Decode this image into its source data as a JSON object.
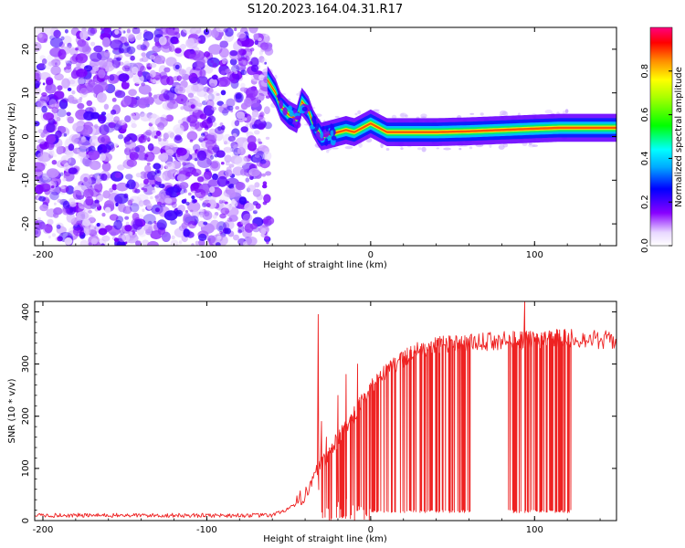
{
  "figure": {
    "title": "S120.2023.164.04.31.R17"
  },
  "colors": {
    "line": "#ee2222",
    "frame": "#000000"
  },
  "chart_data": [
    {
      "type": "heatmap",
      "xlabel": "Height of straight line (km)",
      "ylabel": "Frequency (Hz)",
      "xlim": [
        -205,
        150
      ],
      "ylim": [
        -25,
        25
      ],
      "xticks": [
        -200,
        -100,
        0,
        100
      ],
      "xtick_labels": [
        "-200",
        "-100",
        "0",
        "100"
      ],
      "yticks": [
        -20,
        -10,
        0,
        10,
        20
      ],
      "ytick_labels": [
        "-20",
        "-10",
        "0",
        "10",
        "20"
      ],
      "noise_region_x": [
        -205,
        -62
      ],
      "ridge": {
        "x": [
          -63,
          -58,
          -55,
          -50,
          -45,
          -42,
          -38,
          -35,
          -32,
          -30,
          -25,
          -20,
          -15,
          -10,
          -5,
          0,
          5,
          10,
          20,
          40,
          60,
          80,
          100,
          115,
          150
        ],
        "y": [
          13,
          10,
          7,
          5,
          4,
          8,
          6,
          3,
          1,
          0,
          0.5,
          1,
          1.5,
          1,
          2,
          3,
          2,
          1,
          1,
          1,
          1.2,
          1.5,
          1.8,
          2,
          2
        ]
      },
      "colorbar": {
        "label": "Normalized spectral amplitude",
        "range": [
          0,
          1
        ],
        "ticks": [
          0,
          0.2,
          0.4,
          0.6,
          0.8
        ],
        "tick_labels": [
          "0.0",
          "0.2",
          "0.4",
          "0.6",
          "0.8"
        ]
      },
      "grid": false
    },
    {
      "type": "line",
      "xlabel": "Height of straight line (km)",
      "ylabel": "SNR (10 * v/v)",
      "xlim": [
        -205,
        150
      ],
      "ylim": [
        0,
        420
      ],
      "xticks": [
        -200,
        -100,
        0,
        100
      ],
      "xtick_labels": [
        "-200",
        "-100",
        "0",
        "100"
      ],
      "yticks": [
        0,
        100,
        200,
        300,
        400
      ],
      "ytick_labels": [
        "0",
        "100",
        "200",
        "300",
        "400"
      ],
      "series": [
        {
          "baseline": {
            "x": [
              -205,
              -60,
              -45,
              -35,
              -25,
              -15,
              -5,
              5,
              15,
              25,
              40,
              60,
              80,
              100,
              120,
              150
            ],
            "y": [
              10,
              10,
              30,
              80,
              130,
              180,
              230,
              270,
              300,
              320,
              335,
              340,
              345,
              345,
              350,
              345
            ]
          },
          "spikes": [
            {
              "x": -32,
              "y": 395
            },
            {
              "x": -30,
              "y": 190
            },
            {
              "x": -27,
              "y": 160
            },
            {
              "x": -20,
              "y": 240
            },
            {
              "x": -15,
              "y": 280
            },
            {
              "x": -8,
              "y": 300
            },
            {
              "x": 94,
              "y": 420
            }
          ],
          "dropout_ranges": [
            [
              -35,
              62
            ],
            [
              82,
              122
            ]
          ]
        }
      ],
      "grid": false
    }
  ]
}
